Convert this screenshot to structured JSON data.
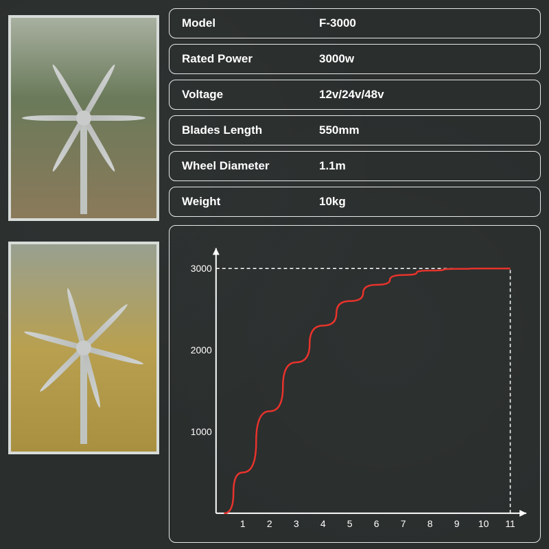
{
  "specs": [
    {
      "label": "Model",
      "value": "F-3000"
    },
    {
      "label": "Rated Power",
      "value": "3000w"
    },
    {
      "label": "Voltage",
      "value": "12v/24v/48v"
    },
    {
      "label": "Blades Length",
      "value": "550mm"
    },
    {
      "label": "Wheel Diameter",
      "value": "1.1m"
    },
    {
      "label": "Weight",
      "value": "10kg"
    }
  ],
  "chart": {
    "type": "line",
    "curve_color": "#e8332c",
    "axis_color": "#ffffff",
    "dashed_color": "#ffffff",
    "background": "transparent",
    "x_ticks": [
      1,
      2,
      3,
      4,
      5,
      6,
      7,
      8,
      9,
      10,
      11
    ],
    "y_ticks": [
      1000,
      2000,
      3000
    ],
    "xlim": [
      0,
      11.5
    ],
    "ylim": [
      0,
      3200
    ],
    "curve_points": [
      {
        "x": 0.3,
        "y": 0
      },
      {
        "x": 1,
        "y": 500
      },
      {
        "x": 2,
        "y": 1250
      },
      {
        "x": 3,
        "y": 1850
      },
      {
        "x": 4,
        "y": 2300
      },
      {
        "x": 5,
        "y": 2600
      },
      {
        "x": 6,
        "y": 2800
      },
      {
        "x": 7,
        "y": 2920
      },
      {
        "x": 8,
        "y": 2975
      },
      {
        "x": 9,
        "y": 2995
      },
      {
        "x": 10,
        "y": 3000
      },
      {
        "x": 11,
        "y": 3000
      }
    ],
    "dashed_h": {
      "y": 3000,
      "x_end": 11
    },
    "dashed_v": {
      "x": 11,
      "y_end": 3000
    },
    "label_fontsize": 14,
    "line_width": 2.5
  },
  "photos": {
    "border_color": "#d8dcd9",
    "count": 2
  }
}
